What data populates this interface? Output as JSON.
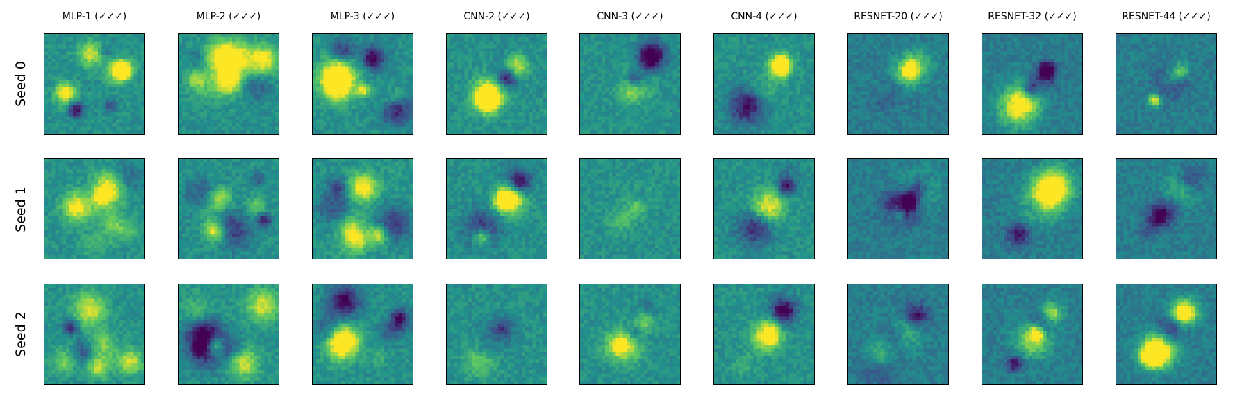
{
  "figure": {
    "columns": [
      {
        "title": "MLP-1 (✓✓✓)"
      },
      {
        "title": "MLP-2 (✓✓✓)"
      },
      {
        "title": "MLP-3 (✓✓✓)"
      },
      {
        "title": "CNN-2 (✓✓✓)"
      },
      {
        "title": "CNN-3 (✓✓✓)"
      },
      {
        "title": "CNN-4 (✓✓✓)"
      },
      {
        "title": "RESNET-20 (✓✓✓)"
      },
      {
        "title": "RESNET-32 (✓✓✓)"
      },
      {
        "title": "RESNET-44 (✓✓✓)"
      }
    ],
    "rows": [
      {
        "label": "Seed 0"
      },
      {
        "label": "Seed 1"
      },
      {
        "label": "Seed 2"
      }
    ],
    "colormap": "viridis",
    "frame_color": "#000000"
  }
}
